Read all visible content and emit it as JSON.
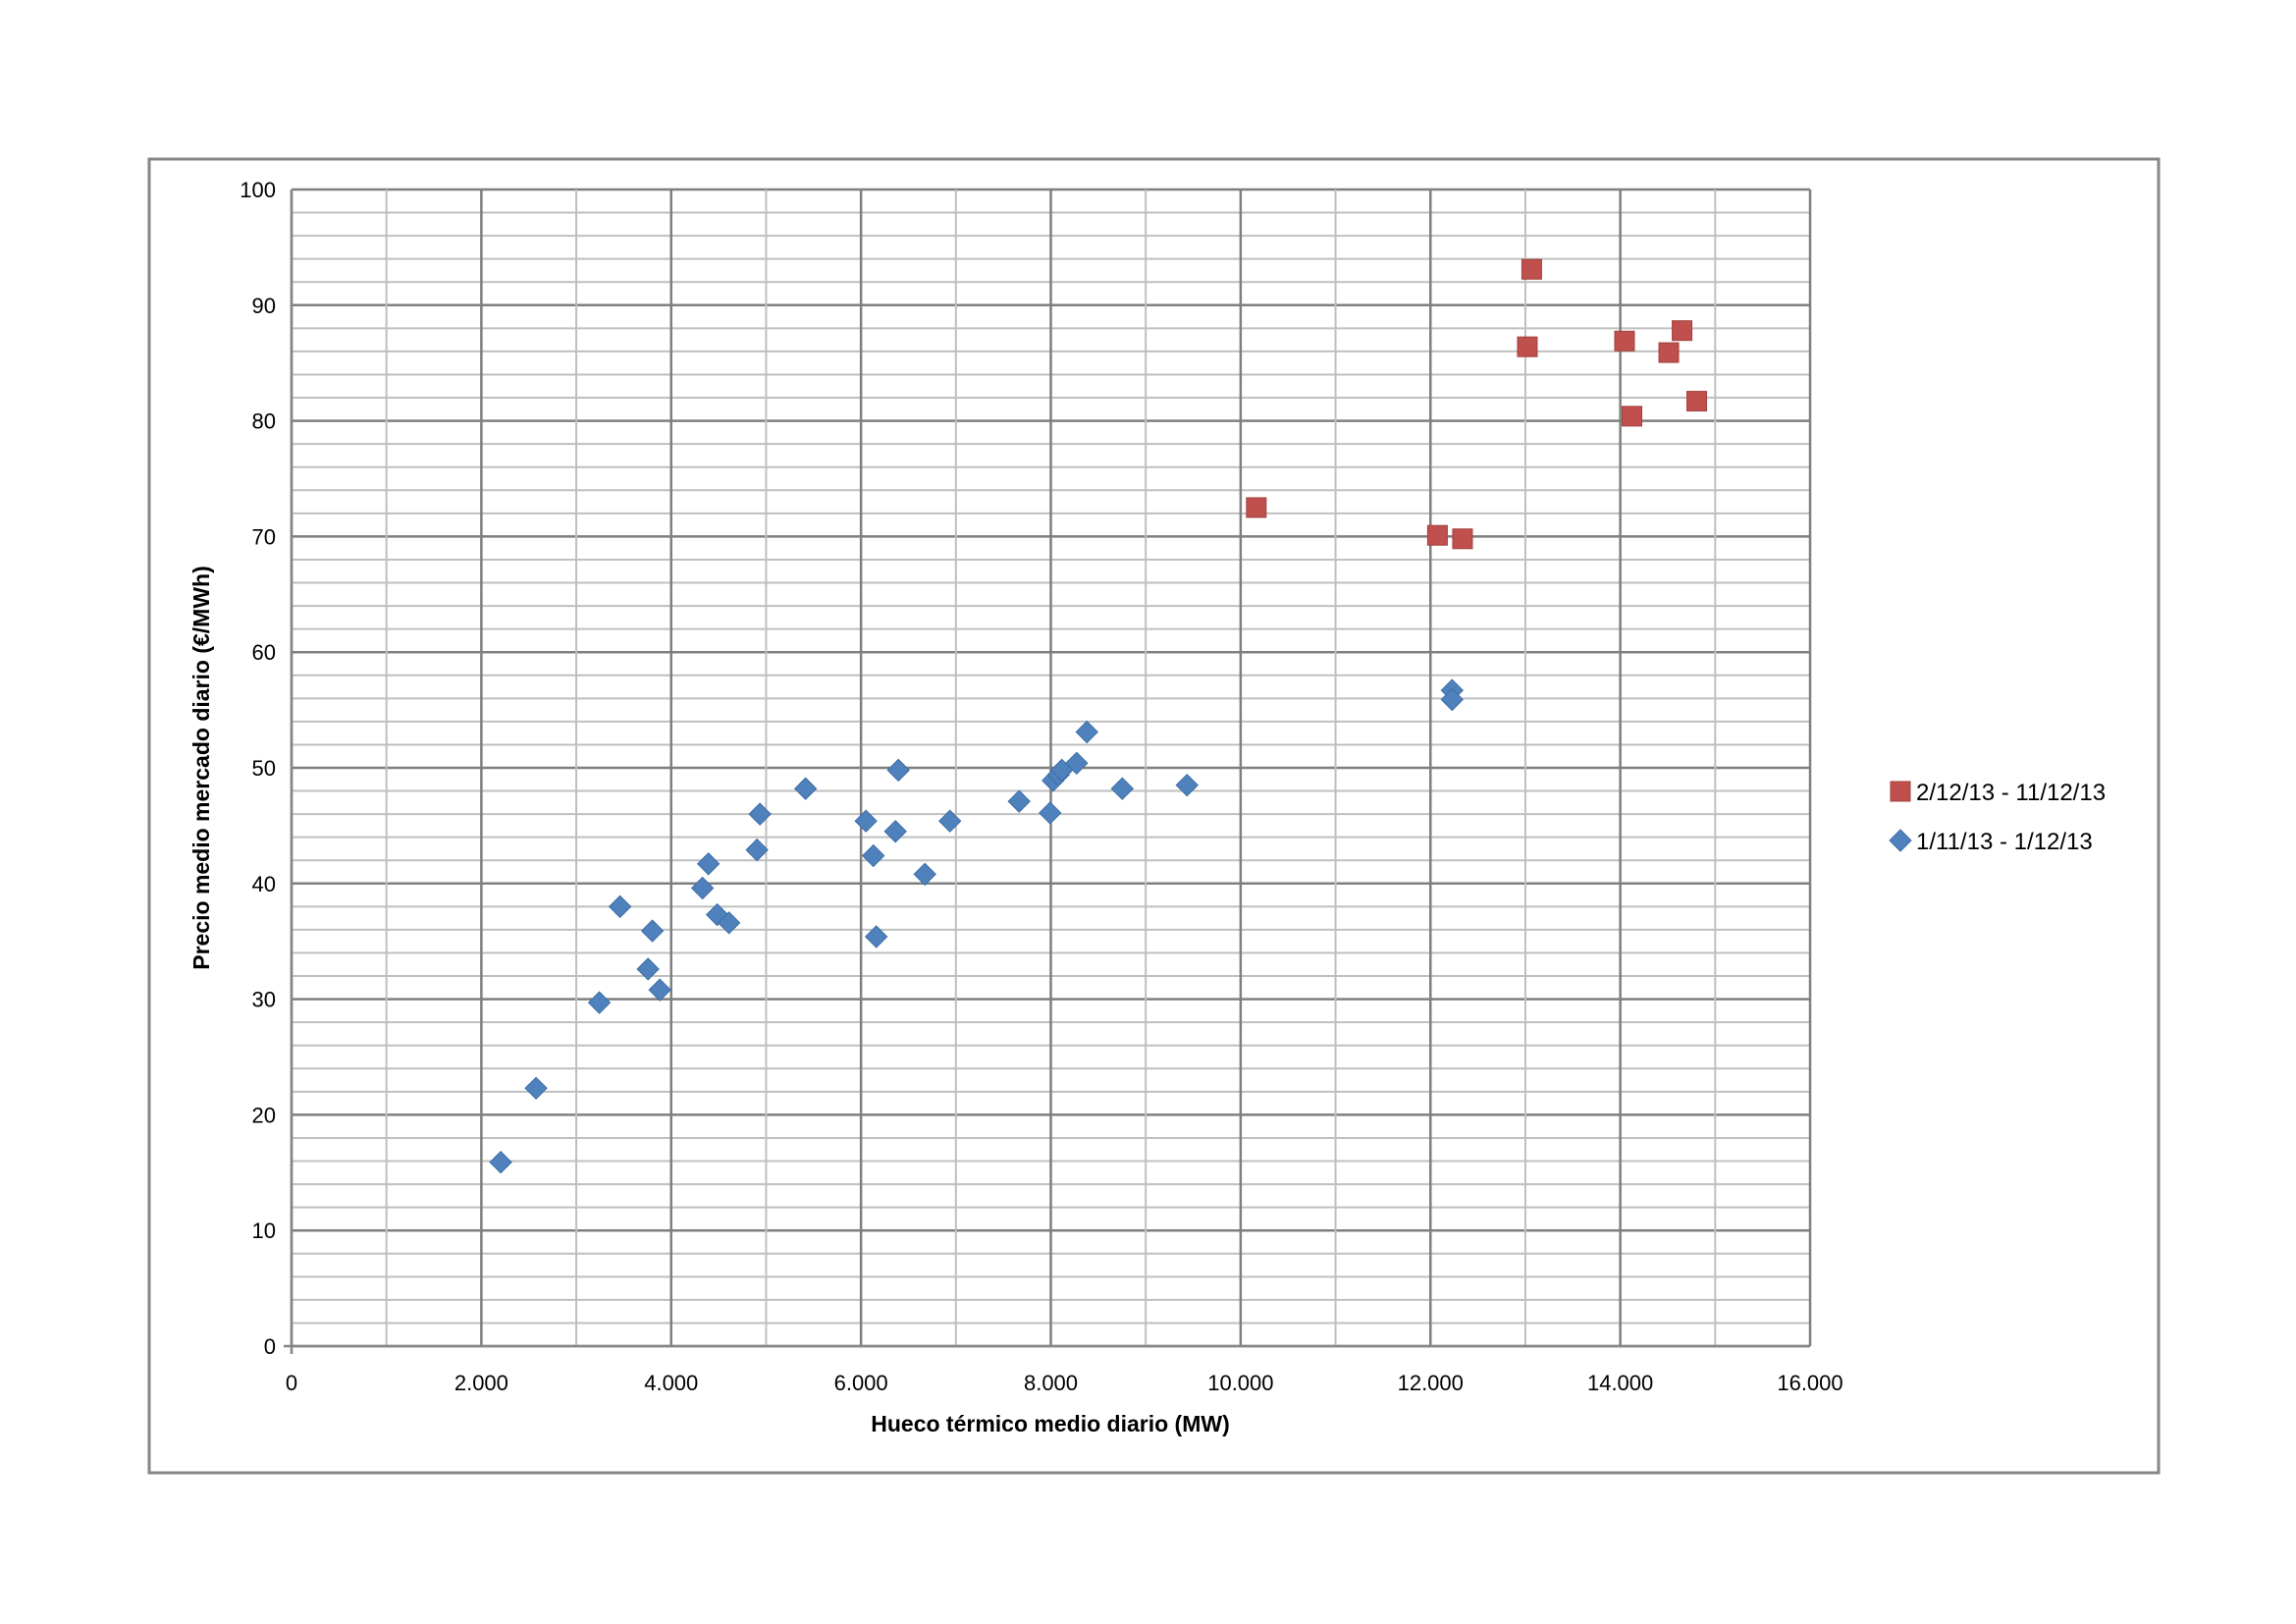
{
  "chart_data": {
    "type": "scatter",
    "title": "",
    "xlabel": "Hueco térmico medio diario (MW)",
    "ylabel": "Precio medio mercado diario (€/MWh)",
    "xlim": [
      0,
      16000
    ],
    "ylim": [
      0,
      100
    ],
    "x_ticks": [
      0,
      2000,
      4000,
      6000,
      8000,
      10000,
      12000,
      14000,
      16000
    ],
    "x_tick_labels": [
      "0",
      "2.000",
      "4.000",
      "6.000",
      "8.000",
      "10.000",
      "12.000",
      "14.000",
      "16.000"
    ],
    "y_ticks": [
      0,
      10,
      20,
      30,
      40,
      50,
      60,
      70,
      80,
      90,
      100
    ],
    "y_tick_labels": [
      "0",
      "10",
      "20",
      "30",
      "40",
      "50",
      "60",
      "70",
      "80",
      "90",
      "100"
    ],
    "grid": true,
    "legend_position": "right",
    "series": [
      {
        "name": "2/12/13 - 11/12/13",
        "marker": "square",
        "color": "#c0504d",
        "points": [
          [
            10165,
            72.5
          ],
          [
            12074,
            70.1
          ],
          [
            12338,
            69.8
          ],
          [
            13021,
            86.4
          ],
          [
            13067,
            93.1
          ],
          [
            14045,
            86.9
          ],
          [
            14123,
            80.4
          ],
          [
            14511,
            85.9
          ],
          [
            14651,
            87.8
          ],
          [
            14806,
            81.7
          ]
        ]
      },
      {
        "name": "1/11/13 - 1/12/13",
        "marker": "diamond",
        "color": "#4f81bd",
        "points": [
          [
            2204,
            15.9
          ],
          [
            2576,
            22.3
          ],
          [
            3243,
            29.7
          ],
          [
            3461,
            38.0
          ],
          [
            3756,
            32.6
          ],
          [
            3802,
            35.9
          ],
          [
            3880,
            30.8
          ],
          [
            4330,
            39.6
          ],
          [
            4392,
            41.7
          ],
          [
            4485,
            37.3
          ],
          [
            4609,
            36.6
          ],
          [
            4904,
            42.9
          ],
          [
            4935,
            46.0
          ],
          [
            5416,
            48.2
          ],
          [
            6052,
            45.4
          ],
          [
            6130,
            42.4
          ],
          [
            6161,
            35.4
          ],
          [
            6363,
            44.5
          ],
          [
            6394,
            49.8
          ],
          [
            6673,
            40.8
          ],
          [
            6937,
            45.4
          ],
          [
            7666,
            47.1
          ],
          [
            7992,
            46.1
          ],
          [
            8023,
            48.9
          ],
          [
            8080,
            49.4
          ],
          [
            8116,
            49.8
          ],
          [
            8272,
            50.4
          ],
          [
            8380,
            53.1
          ],
          [
            8753,
            48.2
          ],
          [
            9435,
            48.5
          ],
          [
            12228,
            56.7
          ],
          [
            12228,
            55.9
          ]
        ]
      }
    ]
  }
}
